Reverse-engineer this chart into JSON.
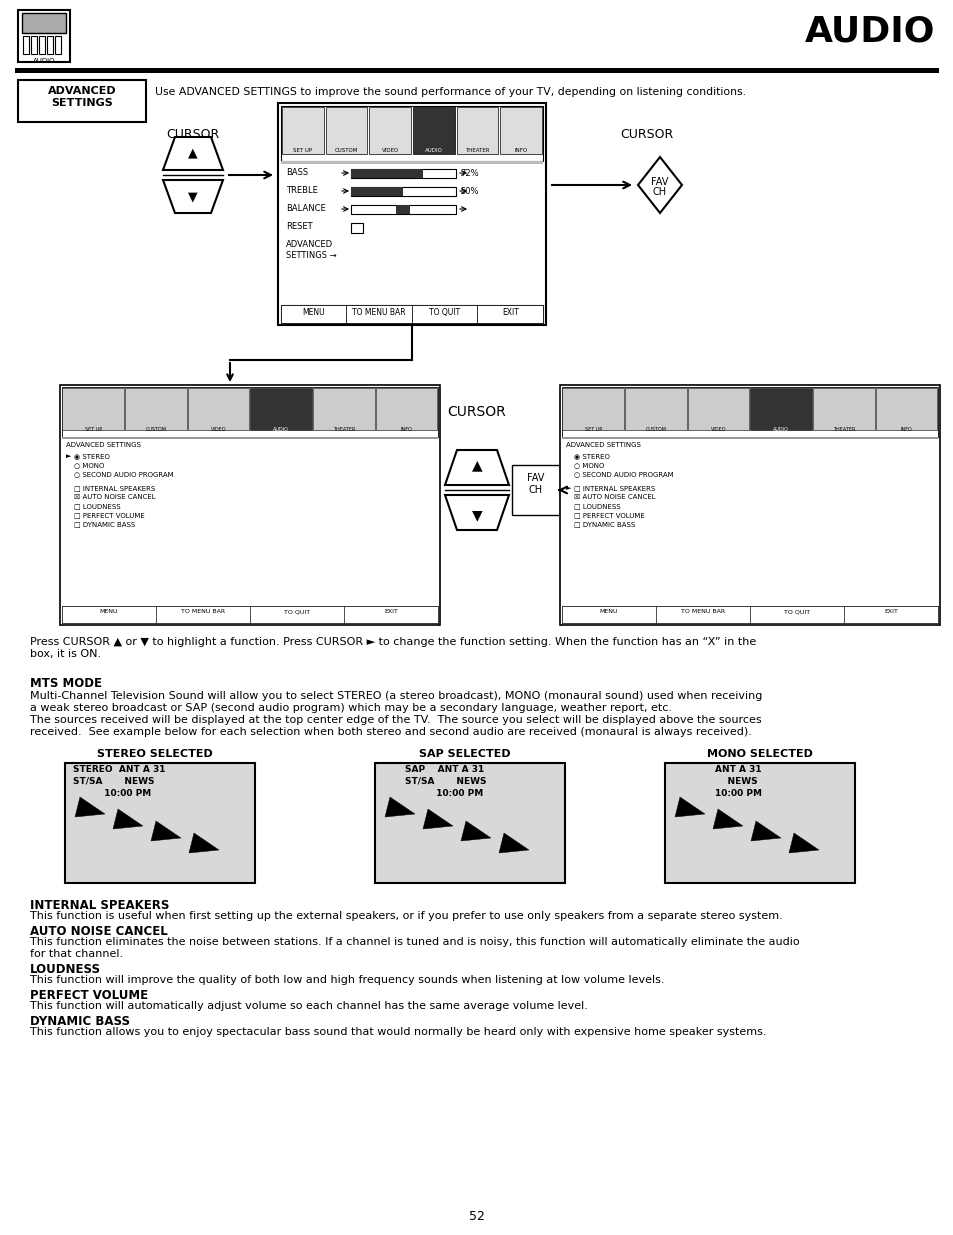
{
  "title": "AUDIO",
  "page_number": "52",
  "bg": "#ffffff",
  "advanced_settings_desc": "Use ADVANCED SETTINGS to improve the sound performance of your TV, depending on listening conditions.",
  "press_cursor_text": "Press CURSOR ▲ or ▼ to highlight a function. Press CURSOR ► to change the function setting. When the function has an “X” in the\nbox, it is ON.",
  "mts_mode_title": "MTS MODE",
  "mts_mode_text1": "Multi-Channel Television Sound will allow you to select STEREO (a stereo broadcast), MONO (monaural sound) used when receiving",
  "mts_mode_text2": "a weak stereo broadcast or SAP (second audio program) which may be a secondary language, weather report, etc.",
  "mts_mode_text3": "The sources received will be displayed at the top center edge of the TV.  The source you select will be displayed above the sources",
  "mts_mode_text4": "received.  See example below for each selection when both stereo and second audio are received (monaural is always received).",
  "stereo_selected_label": "STEREO SELECTED",
  "sap_selected_label": "SAP SELECTED",
  "mono_selected_label": "MONO SELECTED",
  "internal_speakers_title": "INTERNAL SPEAKERS",
  "internal_speakers_text": "This function is useful when first setting up the external speakers, or if you prefer to use only speakers from a separate stereo system.",
  "auto_noise_title": "AUTO NOISE CANCEL",
  "auto_noise_text1": "This function eliminates the noise between stations. If a channel is tuned and is noisy, this function will automatically eliminate the audio",
  "auto_noise_text2": "for that channel.",
  "loudness_title": "LOUDNESS",
  "loudness_text": "This function will improve the quality of both low and high frequency sounds when listening at low volume levels.",
  "perfect_volume_title": "PERFECT VOLUME",
  "perfect_volume_text": "This function will automatically adjust volume so each channel has the same average volume level.",
  "dynamic_bass_title": "DYNAMIC BASS",
  "dynamic_bass_text": "This function allows you to enjoy spectacular bass sound that would normally be heard only with expensive home speaker systems."
}
